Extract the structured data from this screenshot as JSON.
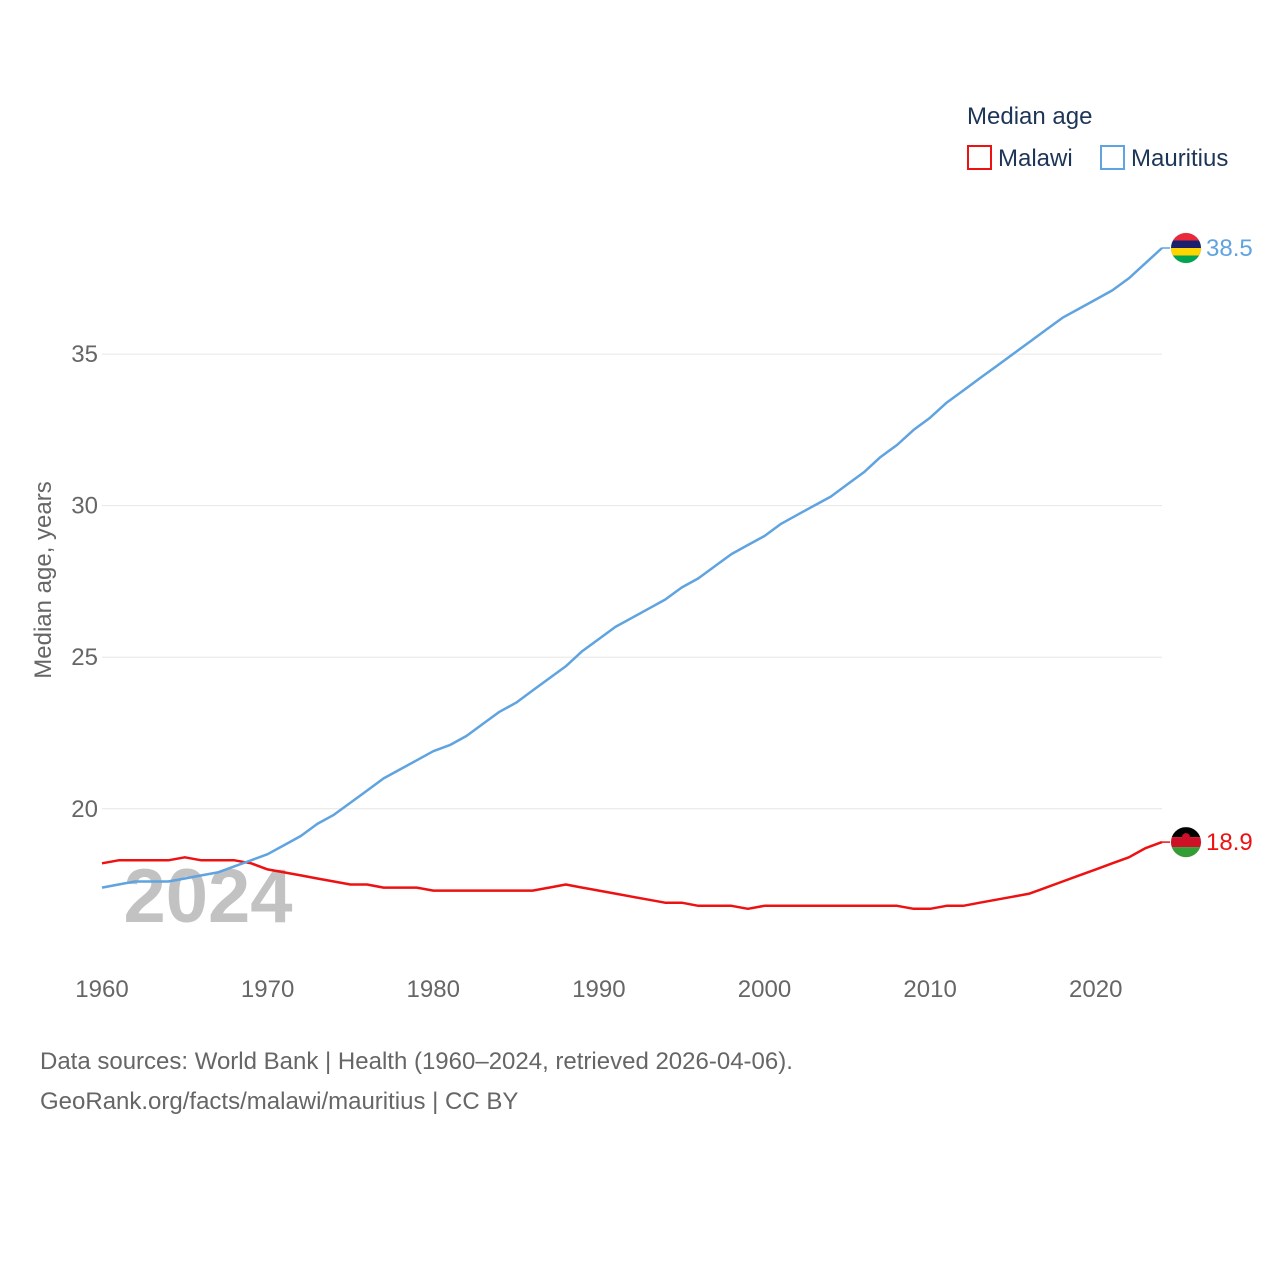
{
  "chart_data": {
    "type": "line",
    "legend_title": "Median age",
    "ylabel": "Median age, years",
    "xlabel": "",
    "xlim": [
      1960,
      2024
    ],
    "ylim": [
      16,
      38.5
    ],
    "x_ticks": [
      1960,
      1970,
      1980,
      1990,
      2000,
      2010,
      2020
    ],
    "y_ticks": [
      20,
      25,
      30,
      35
    ],
    "year_label": "2024",
    "legend_position": "top-right",
    "series": [
      {
        "name": "Malawi",
        "color": "#ee1111",
        "end_label": "18.9",
        "flag": "malawi-flag",
        "values": [
          [
            1960,
            18.2
          ],
          [
            1961,
            18.3
          ],
          [
            1962,
            18.3
          ],
          [
            1963,
            18.3
          ],
          [
            1964,
            18.3
          ],
          [
            1965,
            18.4
          ],
          [
            1966,
            18.3
          ],
          [
            1967,
            18.3
          ],
          [
            1968,
            18.3
          ],
          [
            1969,
            18.2
          ],
          [
            1970,
            18.0
          ],
          [
            1971,
            17.9
          ],
          [
            1972,
            17.8
          ],
          [
            1973,
            17.7
          ],
          [
            1974,
            17.6
          ],
          [
            1975,
            17.5
          ],
          [
            1976,
            17.5
          ],
          [
            1977,
            17.4
          ],
          [
            1978,
            17.4
          ],
          [
            1979,
            17.4
          ],
          [
            1980,
            17.3
          ],
          [
            1981,
            17.3
          ],
          [
            1982,
            17.3
          ],
          [
            1983,
            17.3
          ],
          [
            1984,
            17.3
          ],
          [
            1985,
            17.3
          ],
          [
            1986,
            17.3
          ],
          [
            1987,
            17.4
          ],
          [
            1988,
            17.5
          ],
          [
            1989,
            17.4
          ],
          [
            1990,
            17.3
          ],
          [
            1991,
            17.2
          ],
          [
            1992,
            17.1
          ],
          [
            1993,
            17.0
          ],
          [
            1994,
            16.9
          ],
          [
            1995,
            16.9
          ],
          [
            1996,
            16.8
          ],
          [
            1997,
            16.8
          ],
          [
            1998,
            16.8
          ],
          [
            1999,
            16.7
          ],
          [
            2000,
            16.8
          ],
          [
            2001,
            16.8
          ],
          [
            2002,
            16.8
          ],
          [
            2003,
            16.8
          ],
          [
            2004,
            16.8
          ],
          [
            2005,
            16.8
          ],
          [
            2006,
            16.8
          ],
          [
            2007,
            16.8
          ],
          [
            2008,
            16.8
          ],
          [
            2009,
            16.7
          ],
          [
            2010,
            16.7
          ],
          [
            2011,
            16.8
          ],
          [
            2012,
            16.8
          ],
          [
            2013,
            16.9
          ],
          [
            2014,
            17.0
          ],
          [
            2015,
            17.1
          ],
          [
            2016,
            17.2
          ],
          [
            2017,
            17.4
          ],
          [
            2018,
            17.6
          ],
          [
            2019,
            17.8
          ],
          [
            2020,
            18.0
          ],
          [
            2021,
            18.2
          ],
          [
            2022,
            18.4
          ],
          [
            2023,
            18.7
          ],
          [
            2024,
            18.9
          ]
        ]
      },
      {
        "name": "Mauritius",
        "color": "#5fa3e0",
        "end_label": "38.5",
        "flag": "mauritius-flag",
        "values": [
          [
            1960,
            17.4
          ],
          [
            1961,
            17.5
          ],
          [
            1962,
            17.6
          ],
          [
            1963,
            17.6
          ],
          [
            1964,
            17.6
          ],
          [
            1965,
            17.7
          ],
          [
            1966,
            17.8
          ],
          [
            1967,
            17.9
          ],
          [
            1968,
            18.1
          ],
          [
            1969,
            18.3
          ],
          [
            1970,
            18.5
          ],
          [
            1971,
            18.8
          ],
          [
            1972,
            19.1
          ],
          [
            1973,
            19.5
          ],
          [
            1974,
            19.8
          ],
          [
            1975,
            20.2
          ],
          [
            1976,
            20.6
          ],
          [
            1977,
            21.0
          ],
          [
            1978,
            21.3
          ],
          [
            1979,
            21.6
          ],
          [
            1980,
            21.9
          ],
          [
            1981,
            22.1
          ],
          [
            1982,
            22.4
          ],
          [
            1983,
            22.8
          ],
          [
            1984,
            23.2
          ],
          [
            1985,
            23.5
          ],
          [
            1986,
            23.9
          ],
          [
            1987,
            24.3
          ],
          [
            1988,
            24.7
          ],
          [
            1989,
            25.2
          ],
          [
            1990,
            25.6
          ],
          [
            1991,
            26.0
          ],
          [
            1992,
            26.3
          ],
          [
            1993,
            26.6
          ],
          [
            1994,
            26.9
          ],
          [
            1995,
            27.3
          ],
          [
            1996,
            27.6
          ],
          [
            1997,
            28.0
          ],
          [
            1998,
            28.4
          ],
          [
            1999,
            28.7
          ],
          [
            2000,
            29.0
          ],
          [
            2001,
            29.4
          ],
          [
            2002,
            29.7
          ],
          [
            2003,
            30.0
          ],
          [
            2004,
            30.3
          ],
          [
            2005,
            30.7
          ],
          [
            2006,
            31.1
          ],
          [
            2007,
            31.6
          ],
          [
            2008,
            32.0
          ],
          [
            2009,
            32.5
          ],
          [
            2010,
            32.9
          ],
          [
            2011,
            33.4
          ],
          [
            2012,
            33.8
          ],
          [
            2013,
            34.2
          ],
          [
            2014,
            34.6
          ],
          [
            2015,
            35.0
          ],
          [
            2016,
            35.4
          ],
          [
            2017,
            35.8
          ],
          [
            2018,
            36.2
          ],
          [
            2019,
            36.5
          ],
          [
            2020,
            36.8
          ],
          [
            2021,
            37.1
          ],
          [
            2022,
            37.5
          ],
          [
            2023,
            38.0
          ],
          [
            2024,
            38.5
          ]
        ]
      }
    ]
  },
  "footer": {
    "sources": "Data sources: World Bank | Health (1960–2024, retrieved 2026-04-06).",
    "credit": "GeoRank.org/facts/malawi/mauritius | CC BY"
  }
}
